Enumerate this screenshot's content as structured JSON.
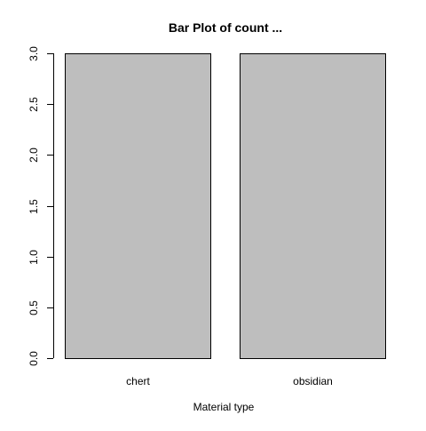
{
  "chart_data": {
    "type": "bar",
    "title": "Bar Plot of count ...",
    "xlabel": "Material type",
    "ylabel": "",
    "categories": [
      "chert",
      "obsidian"
    ],
    "values": [
      3,
      3
    ],
    "ylim": [
      0,
      3
    ],
    "yticks": [
      "0.0",
      "0.5",
      "1.0",
      "1.5",
      "2.0",
      "2.5",
      "3.0"
    ],
    "grid": false,
    "bar_fill": "#bebebe",
    "bar_stroke": "#000000"
  }
}
